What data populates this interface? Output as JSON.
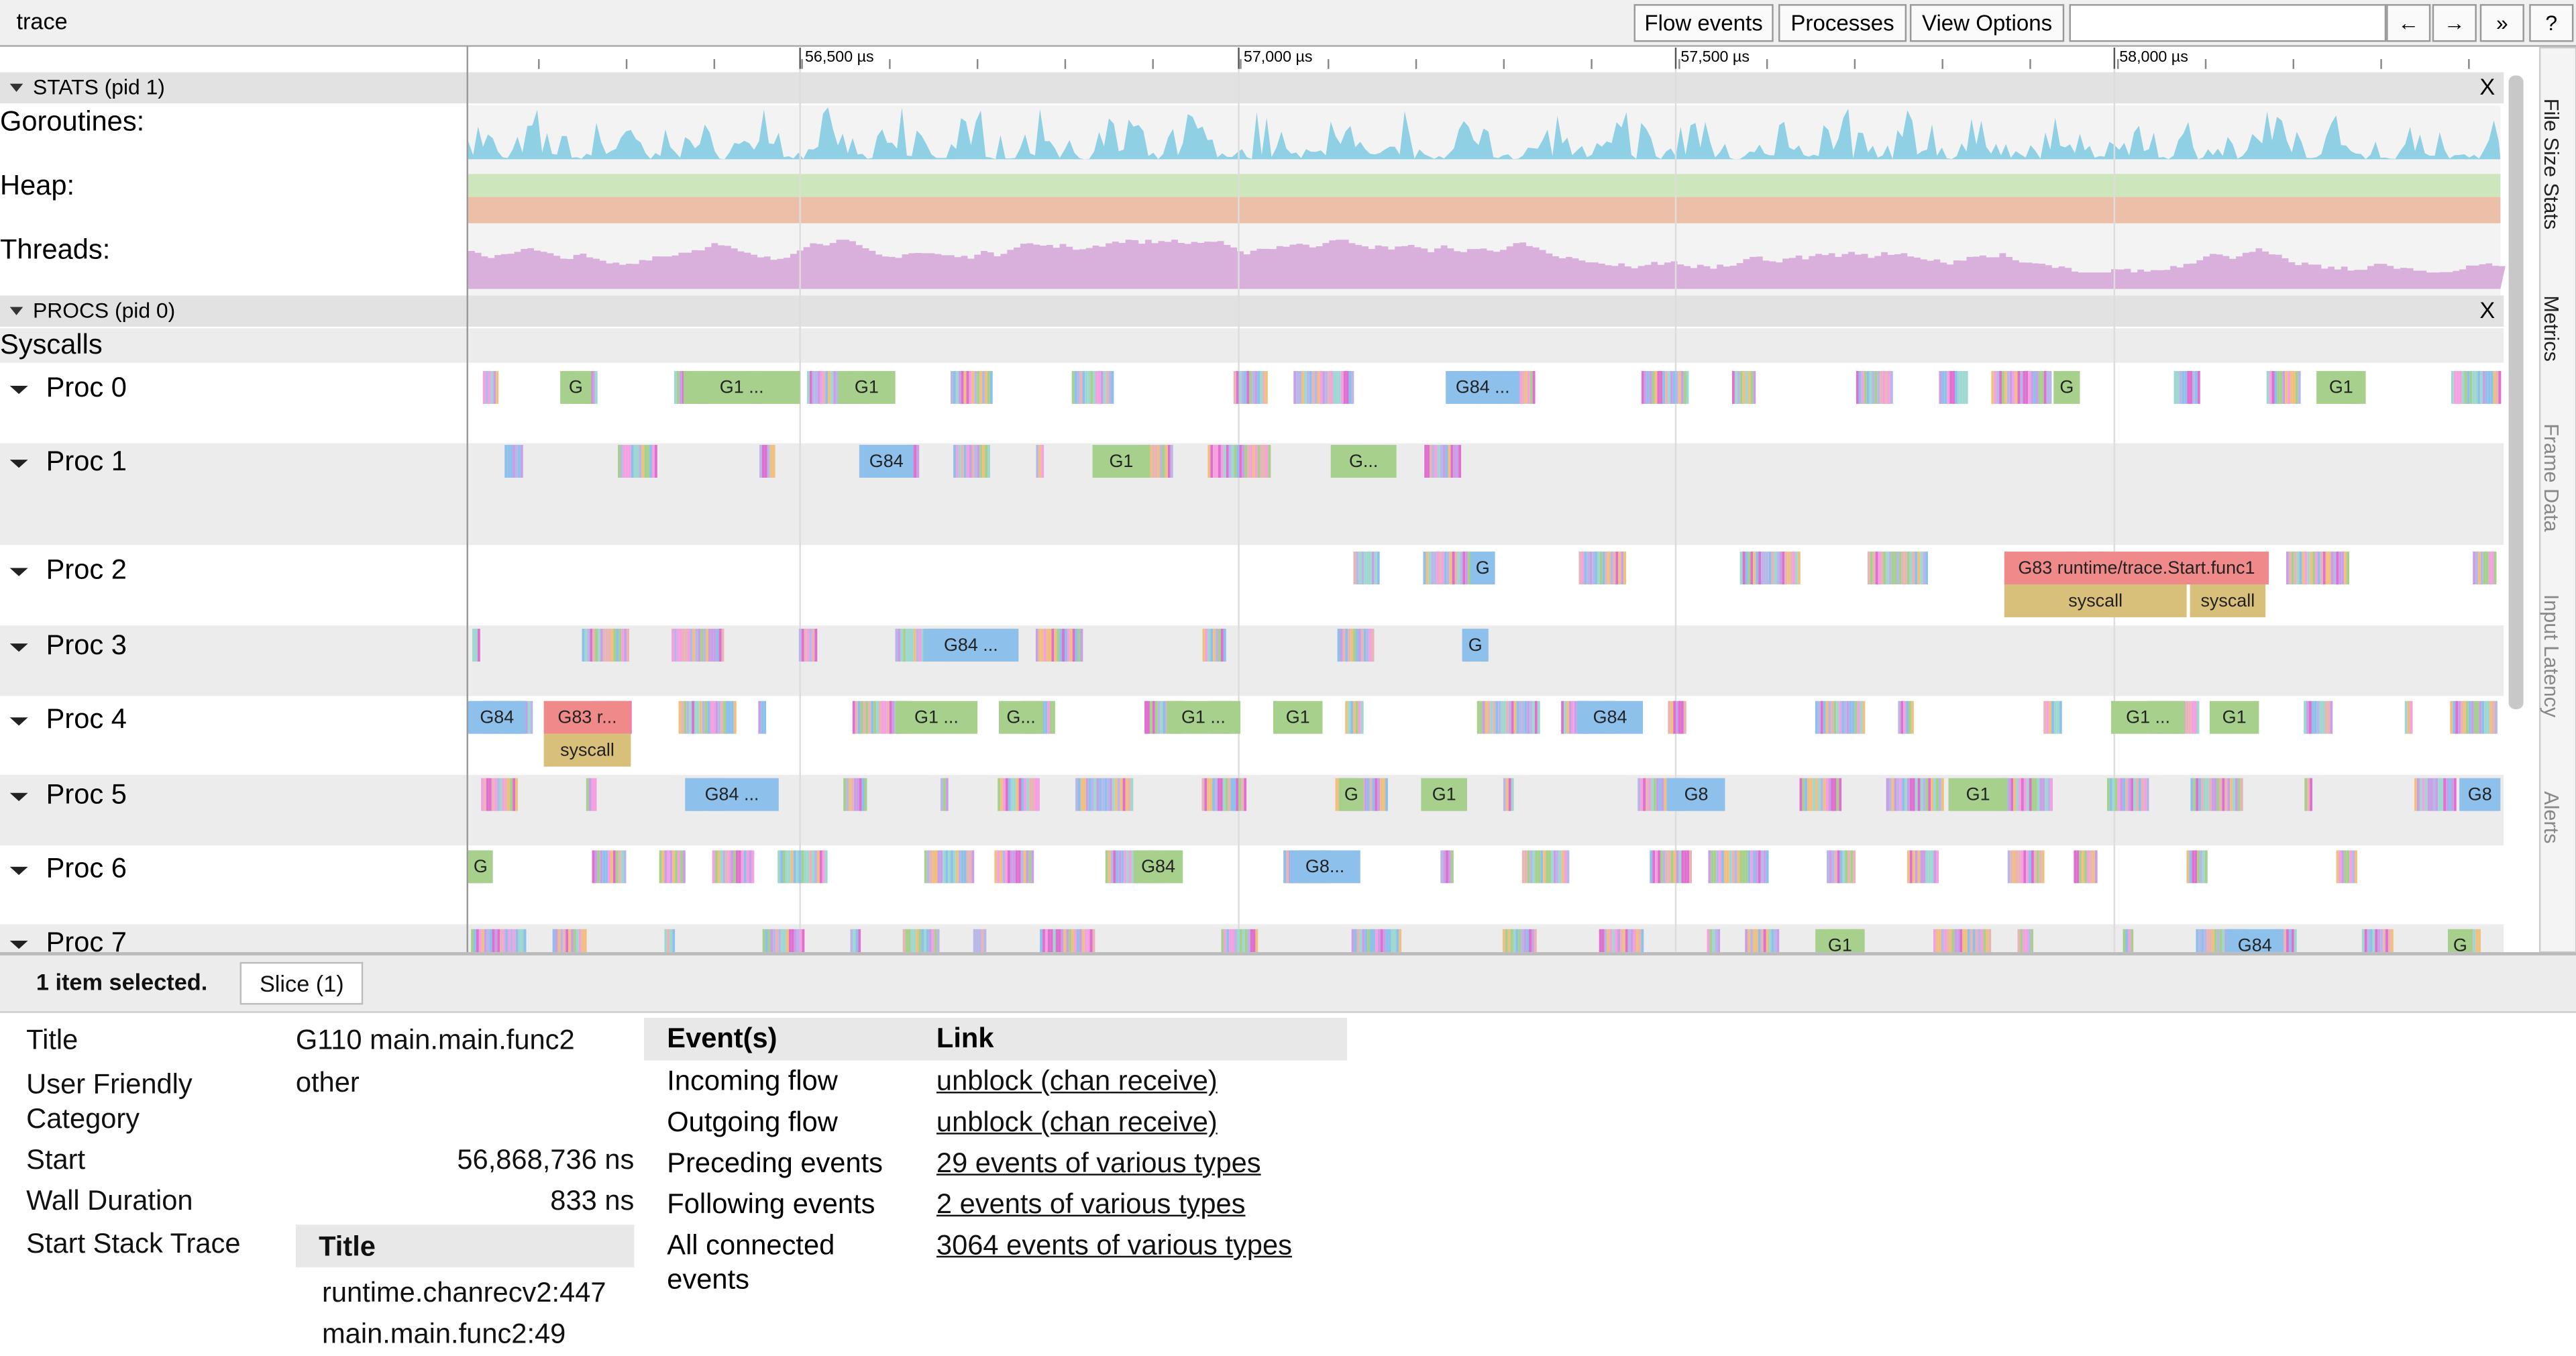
{
  "toolbar": {
    "title": "trace",
    "buttons": [
      "Flow events",
      "Processes",
      "View Options"
    ],
    "nav": [
      "←",
      "→",
      "»",
      "?"
    ]
  },
  "ruler": {
    "ticks": [
      "56,500 µs",
      "57,000 µs",
      "57,500 µs",
      "58,000 µs"
    ]
  },
  "stats": {
    "header": "STATS (pid 1)",
    "close": "X",
    "counters": [
      "Goroutines:",
      "Heap:",
      "Threads:"
    ]
  },
  "procs": {
    "header": "PROCS (pid 0)",
    "close": "X",
    "syscalls": "Syscalls",
    "rows": [
      {
        "name": "Proc 0",
        "slices": [
          "G",
          "G1 ...",
          "G1",
          "G84 ...",
          "G",
          "G1"
        ]
      },
      {
        "name": "Proc 1",
        "slices": [
          "G84",
          "G1",
          "G..."
        ]
      },
      {
        "name": "Proc 2",
        "slices": [
          "G",
          "G83 runtime/trace.Start.func1"
        ],
        "syscalls": [
          "syscall",
          "syscall"
        ]
      },
      {
        "name": "Proc 3",
        "slices": [
          "G84 ...",
          "G"
        ]
      },
      {
        "name": "Proc 4",
        "slices": [
          "G84",
          "G83 r...",
          "G1 ...",
          "G...",
          "G1 ...",
          "G1",
          "G84",
          "G1 ...",
          "G1"
        ],
        "syscalls": [
          "syscall"
        ]
      },
      {
        "name": "Proc 5",
        "slices": [
          "G84 ...",
          "G",
          "G1",
          "G8",
          "G1",
          "G8"
        ]
      },
      {
        "name": "Proc 6",
        "slices": [
          "G",
          "G84",
          "G8..."
        ]
      },
      {
        "name": "Proc 7",
        "slices": [
          "G1",
          "G84",
          "G"
        ]
      }
    ]
  },
  "side_tabs": [
    "File Size Stats",
    "Metrics",
    "Frame Data",
    "Input Latency",
    "Alerts"
  ],
  "selection": {
    "status": "1 item selected.",
    "tab": "Slice (1)"
  },
  "details": {
    "fields": [
      {
        "label": "Title",
        "value": "G110 main.main.func2"
      },
      {
        "label": "User Friendly Category",
        "value": "other"
      },
      {
        "label": "Start",
        "value": "56,868,736 ns"
      },
      {
        "label": "Wall Duration",
        "value": "833 ns"
      },
      {
        "label": "Start Stack Trace"
      }
    ],
    "stack": {
      "header": "Title",
      "rows": [
        "runtime.chanrecv2:447",
        "main.main.func2:49"
      ]
    }
  },
  "events": {
    "headers": [
      "Event(s)",
      "Link"
    ],
    "rows": [
      [
        "Incoming flow",
        "unblock (chan receive)"
      ],
      [
        "Outgoing flow",
        "unblock (chan receive)"
      ],
      [
        "Preceding events",
        "29 events of various types"
      ],
      [
        "Following events",
        "2 events of various types"
      ],
      [
        "All connected events",
        "3064 events of various types"
      ]
    ]
  }
}
